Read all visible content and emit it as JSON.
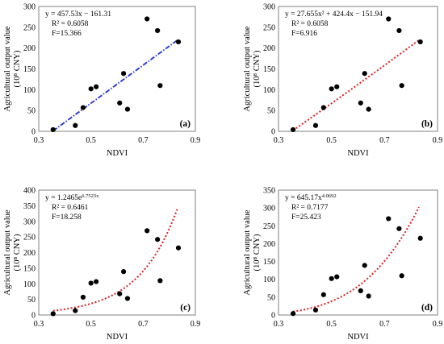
{
  "chart_data": [
    {
      "type": "scatter",
      "panel_label": "(a)",
      "xlabel": "NDVI",
      "ylabel_lines": [
        "Agricultural output value",
        "(10⁸ CNY)"
      ],
      "xlim": [
        0.3,
        0.9
      ],
      "ylim": [
        0,
        300
      ],
      "xticks": [
        "0.3",
        "0.5",
        "0.7",
        "0.9"
      ],
      "yticks": [
        "0",
        "50",
        "100",
        "150",
        "200",
        "250",
        "300"
      ],
      "equation_lines": [
        "y = 457.53x − 161.31",
        "R² = 0.6058",
        "F=15.366"
      ],
      "fit": {
        "model": "linear",
        "a": 457.53,
        "b": -161.31,
        "x_range": [
          0.355,
          0.83
        ],
        "color": "#3040d0",
        "style": "dash-dot"
      },
      "points": [
        {
          "x": 0.355,
          "y": 4
        },
        {
          "x": 0.44,
          "y": 14
        },
        {
          "x": 0.47,
          "y": 57
        },
        {
          "x": 0.5,
          "y": 102
        },
        {
          "x": 0.52,
          "y": 107
        },
        {
          "x": 0.61,
          "y": 68
        },
        {
          "x": 0.625,
          "y": 139
        },
        {
          "x": 0.64,
          "y": 53
        },
        {
          "x": 0.715,
          "y": 270
        },
        {
          "x": 0.755,
          "y": 242
        },
        {
          "x": 0.765,
          "y": 110
        },
        {
          "x": 0.835,
          "y": 215
        }
      ]
    },
    {
      "type": "scatter",
      "panel_label": "(b)",
      "xlabel": "NDVI",
      "ylabel_lines": [
        "Agricultural output value",
        "(10⁸ CNY)"
      ],
      "xlim": [
        0.3,
        0.9
      ],
      "ylim": [
        0,
        300
      ],
      "xticks": [
        "0.3",
        "0.5",
        "0.7",
        "0.9"
      ],
      "yticks": [
        "0",
        "50",
        "100",
        "150",
        "200",
        "250",
        "300"
      ],
      "equation_lines": [
        "y = 27.655x² + 424.4x − 151.94",
        "R² = 0.6058",
        "F=6.916"
      ],
      "fit": {
        "model": "quadratic",
        "a": 27.655,
        "b": 424.4,
        "c": -151.94,
        "x_range": [
          0.355,
          0.83
        ],
        "color": "#e02020",
        "style": "dotted"
      },
      "points": [
        {
          "x": 0.355,
          "y": 4
        },
        {
          "x": 0.44,
          "y": 14
        },
        {
          "x": 0.47,
          "y": 57
        },
        {
          "x": 0.5,
          "y": 102
        },
        {
          "x": 0.52,
          "y": 107
        },
        {
          "x": 0.61,
          "y": 68
        },
        {
          "x": 0.625,
          "y": 139
        },
        {
          "x": 0.64,
          "y": 53
        },
        {
          "x": 0.715,
          "y": 270
        },
        {
          "x": 0.755,
          "y": 242
        },
        {
          "x": 0.765,
          "y": 110
        },
        {
          "x": 0.835,
          "y": 215
        }
      ]
    },
    {
      "type": "scatter",
      "panel_label": "(c)",
      "xlabel": "NDVI",
      "ylabel_lines": [
        "Agricultural output value",
        "(10⁸ CNY)"
      ],
      "xlim": [
        0.3,
        0.9
      ],
      "ylim": [
        0,
        400
      ],
      "xticks": [
        "0.3",
        "0.5",
        "0.7",
        "0.9"
      ],
      "yticks": [
        "0",
        "50",
        "100",
        "150",
        "200",
        "250",
        "300",
        "350",
        "400"
      ],
      "equation_lines": [
        "y = 1.2465e^6.7523x",
        "R² = 0.6461",
        "F=18.258"
      ],
      "fit": {
        "model": "exponential",
        "a": 1.2465,
        "b": 6.7523,
        "x_range": [
          0.355,
          0.83
        ],
        "color": "#e02020",
        "style": "dotted"
      },
      "points": [
        {
          "x": 0.355,
          "y": 4
        },
        {
          "x": 0.44,
          "y": 14
        },
        {
          "x": 0.47,
          "y": 57
        },
        {
          "x": 0.5,
          "y": 102
        },
        {
          "x": 0.52,
          "y": 107
        },
        {
          "x": 0.61,
          "y": 68
        },
        {
          "x": 0.625,
          "y": 139
        },
        {
          "x": 0.64,
          "y": 53
        },
        {
          "x": 0.715,
          "y": 270
        },
        {
          "x": 0.755,
          "y": 242
        },
        {
          "x": 0.765,
          "y": 110
        },
        {
          "x": 0.835,
          "y": 215
        }
      ]
    },
    {
      "type": "scatter",
      "panel_label": "(d)",
      "xlabel": "NDVI",
      "ylabel_lines": [
        "Agricultural output value",
        "(10⁸ CNY)"
      ],
      "xlim": [
        0.3,
        0.9
      ],
      "ylim": [
        0,
        350
      ],
      "xticks": [
        "0.3",
        "0.5",
        "0.7",
        "0.9"
      ],
      "yticks": [
        "0",
        "50",
        "100",
        "150",
        "200",
        "250",
        "300",
        "350"
      ],
      "equation_lines": [
        "y = 645.17x^4.0692",
        "R² = 0.7177",
        "F=25.423"
      ],
      "fit": {
        "model": "power",
        "a": 645.17,
        "b": 4.0692,
        "x_range": [
          0.355,
          0.83
        ],
        "color": "#e02020",
        "style": "dotted"
      },
      "points": [
        {
          "x": 0.355,
          "y": 4
        },
        {
          "x": 0.44,
          "y": 14
        },
        {
          "x": 0.47,
          "y": 57
        },
        {
          "x": 0.5,
          "y": 102
        },
        {
          "x": 0.52,
          "y": 107
        },
        {
          "x": 0.61,
          "y": 68
        },
        {
          "x": 0.625,
          "y": 139
        },
        {
          "x": 0.64,
          "y": 53
        },
        {
          "x": 0.715,
          "y": 270
        },
        {
          "x": 0.755,
          "y": 242
        },
        {
          "x": 0.765,
          "y": 110
        },
        {
          "x": 0.835,
          "y": 215
        }
      ]
    }
  ]
}
